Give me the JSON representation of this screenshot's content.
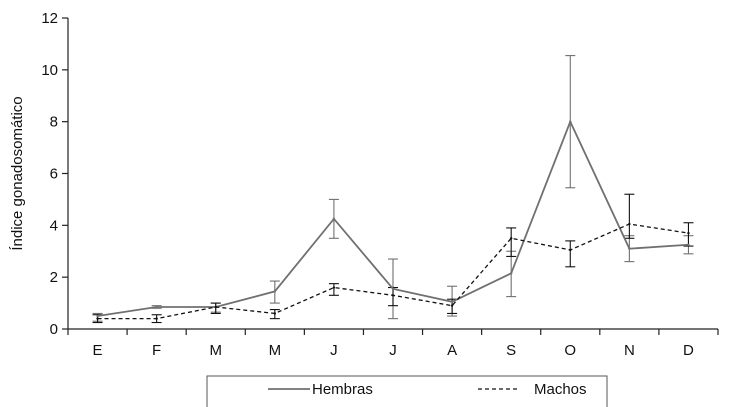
{
  "chart_data": {
    "type": "line",
    "ylabel": "Índice gonadosomático",
    "xlabel": "",
    "categories": [
      "E",
      "F",
      "M",
      "M",
      "J",
      "J",
      "A",
      "S",
      "O",
      "N",
      "D"
    ],
    "ylim": [
      0,
      12
    ],
    "yticks": [
      0,
      2,
      4,
      6,
      8,
      10,
      12
    ],
    "grid": false,
    "legend_position": "bottom",
    "series": [
      {
        "name": "Hembras",
        "style": "solid",
        "color": "#707070",
        "values": [
          0.5,
          0.85,
          0.85,
          1.45,
          4.25,
          1.55,
          1.05,
          2.15,
          8.0,
          3.1,
          3.25
        ],
        "error_low": [
          0.3,
          0.8,
          0.65,
          1.0,
          3.5,
          0.4,
          0.5,
          1.25,
          5.45,
          2.6,
          2.9
        ],
        "error_high": [
          0.6,
          0.9,
          1.0,
          1.85,
          5.0,
          2.7,
          1.65,
          3.0,
          10.55,
          3.6,
          3.6
        ]
      },
      {
        "name": "Machos",
        "style": "dashed",
        "color": "#111111",
        "values": [
          0.4,
          0.4,
          0.85,
          0.6,
          1.6,
          1.3,
          0.9,
          3.5,
          3.05,
          4.05,
          3.7
        ],
        "error_low": [
          0.25,
          0.25,
          0.6,
          0.4,
          1.3,
          0.9,
          0.6,
          2.8,
          2.4,
          3.5,
          3.2
        ],
        "error_high": [
          0.55,
          0.55,
          1.0,
          0.75,
          1.75,
          1.6,
          1.15,
          3.9,
          3.4,
          5.2,
          4.1
        ]
      }
    ]
  }
}
